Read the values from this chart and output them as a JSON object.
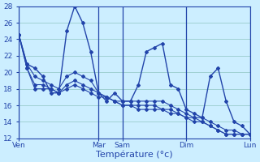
{
  "background_color": "#cceeff",
  "grid_color": "#99cccc",
  "line_color": "#2244aa",
  "xlabel": "Température (°c)",
  "ylim": [
    12,
    28
  ],
  "yticks": [
    12,
    14,
    16,
    18,
    20,
    22,
    24,
    26,
    28
  ],
  "day_labels": [
    "Ven",
    "Mar",
    "Sam",
    "Dim",
    "Lun"
  ],
  "day_x_positions": [
    0,
    10,
    13,
    21,
    29
  ],
  "xlim": [
    0,
    30
  ],
  "series_main": [
    24.5,
    21.0,
    20.5,
    19.5,
    17.5,
    17.5,
    25.0,
    28.0,
    26.0,
    22.5,
    17.5,
    16.5,
    17.5,
    16.5,
    16.5,
    18.5,
    22.5,
    23.0,
    23.5,
    18.5,
    18.0,
    15.5,
    15.0,
    14.5,
    19.5,
    20.5,
    16.5,
    14.0,
    13.5,
    12.5
  ],
  "series_flat": [
    [
      24.5,
      21.0,
      19.5,
      19.0,
      18.5,
      18.0,
      19.5,
      20.0,
      19.5,
      19.0,
      17.5,
      17.0,
      16.5,
      16.5,
      16.5,
      16.5,
      16.5,
      16.5,
      16.5,
      16.0,
      15.5,
      15.0,
      14.5,
      14.5,
      14.0,
      13.5,
      13.0,
      13.0,
      12.5,
      12.5
    ],
    [
      24.5,
      20.5,
      18.5,
      18.5,
      18.0,
      17.5,
      18.5,
      19.0,
      18.5,
      18.0,
      17.5,
      17.0,
      16.5,
      16.0,
      16.0,
      16.0,
      16.0,
      16.0,
      15.5,
      15.5,
      15.0,
      14.5,
      14.5,
      14.0,
      13.5,
      13.0,
      12.5,
      12.5,
      12.5,
      12.5
    ],
    [
      24.5,
      20.5,
      18.0,
      18.0,
      18.0,
      17.5,
      18.0,
      18.5,
      18.0,
      17.5,
      17.0,
      17.0,
      16.5,
      16.0,
      16.0,
      15.5,
      15.5,
      15.5,
      15.5,
      15.0,
      15.0,
      14.5,
      14.0,
      14.0,
      13.5,
      13.0,
      12.5,
      12.5,
      12.5,
      12.5
    ]
  ],
  "main_linestyle": "-",
  "flat_linestyle": "-",
  "marker": "D",
  "marker_size": 2.0,
  "main_linewidth": 1.0,
  "flat_linewidth": 0.8
}
